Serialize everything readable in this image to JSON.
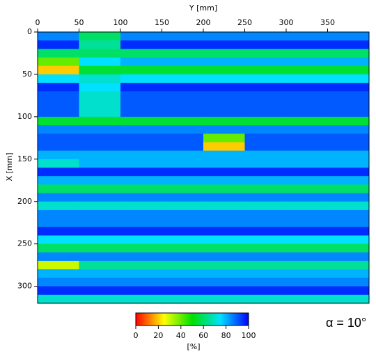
{
  "chart_data": {
    "type": "heatmap",
    "x_label": "Y [mm]",
    "y_label": "X [mm]",
    "x_edges": [
      0,
      50,
      100,
      150,
      200,
      250,
      300,
      350,
      400
    ],
    "y_edges": [
      0,
      10,
      20,
      30,
      40,
      50,
      60,
      70,
      80,
      90,
      100,
      110,
      120,
      130,
      140,
      150,
      160,
      170,
      180,
      190,
      200,
      210,
      220,
      230,
      240,
      250,
      260,
      270,
      280,
      290,
      300,
      310,
      320
    ],
    "values": [
      [
        85,
        60,
        85,
        85,
        85,
        85,
        85,
        85
      ],
      [
        95,
        65,
        95,
        95,
        95,
        95,
        95,
        95
      ],
      [
        60,
        60,
        60,
        60,
        60,
        60,
        60,
        60
      ],
      [
        40,
        75,
        80,
        80,
        80,
        80,
        80,
        80
      ],
      [
        20,
        55,
        55,
        55,
        55,
        55,
        55,
        55
      ],
      [
        75,
        70,
        75,
        75,
        75,
        75,
        75,
        75
      ],
      [
        95,
        75,
        95,
        95,
        95,
        95,
        95,
        95
      ],
      [
        90,
        70,
        90,
        90,
        90,
        90,
        90,
        90
      ],
      [
        90,
        70,
        90,
        90,
        90,
        90,
        90,
        90
      ],
      [
        90,
        70,
        90,
        90,
        90,
        90,
        90,
        90
      ],
      [
        55,
        55,
        55,
        55,
        55,
        55,
        55,
        55
      ],
      [
        85,
        85,
        85,
        85,
        85,
        85,
        85,
        85
      ],
      [
        90,
        90,
        90,
        90,
        40,
        90,
        90,
        90
      ],
      [
        90,
        90,
        90,
        90,
        20,
        90,
        90,
        90
      ],
      [
        80,
        80,
        80,
        80,
        80,
        80,
        80,
        80
      ],
      [
        70,
        80,
        80,
        80,
        80,
        80,
        80,
        80
      ],
      [
        95,
        95,
        95,
        95,
        95,
        95,
        95,
        95
      ],
      [
        80,
        80,
        80,
        80,
        80,
        80,
        80,
        80
      ],
      [
        60,
        60,
        60,
        60,
        60,
        60,
        60,
        60
      ],
      [
        85,
        85,
        85,
        85,
        85,
        85,
        85,
        85
      ],
      [
        70,
        70,
        70,
        70,
        70,
        70,
        70,
        70
      ],
      [
        85,
        85,
        85,
        85,
        85,
        85,
        85,
        85
      ],
      [
        85,
        85,
        85,
        85,
        85,
        85,
        85,
        85
      ],
      [
        95,
        95,
        95,
        95,
        95,
        95,
        95,
        95
      ],
      [
        75,
        75,
        75,
        75,
        75,
        75,
        75,
        75
      ],
      [
        60,
        60,
        60,
        60,
        60,
        60,
        60,
        60
      ],
      [
        85,
        85,
        85,
        85,
        85,
        85,
        85,
        85
      ],
      [
        30,
        65,
        65,
        65,
        65,
        65,
        65,
        65
      ],
      [
        80,
        80,
        80,
        80,
        80,
        80,
        80,
        80
      ],
      [
        85,
        85,
        85,
        85,
        85,
        85,
        85,
        85
      ],
      [
        95,
        95,
        95,
        95,
        95,
        95,
        95,
        95
      ],
      [
        70,
        70,
        70,
        70,
        70,
        70,
        70,
        70
      ]
    ],
    "xlim": [
      0,
      400
    ],
    "ylim": [
      0,
      320
    ],
    "xticks": [
      0,
      50,
      100,
      150,
      200,
      250,
      300,
      350
    ],
    "yticks": [
      0,
      50,
      100,
      150,
      200,
      250,
      300
    ],
    "colormap": [
      "#ff0000",
      "#ffff00",
      "#00e000",
      "#00e0ff",
      "#0000ff"
    ],
    "colorbar_label": "[%]",
    "clim": [
      0,
      100
    ],
    "cticks": [
      0,
      20,
      40,
      60,
      80,
      100
    ],
    "annotation": "α = 10°"
  }
}
